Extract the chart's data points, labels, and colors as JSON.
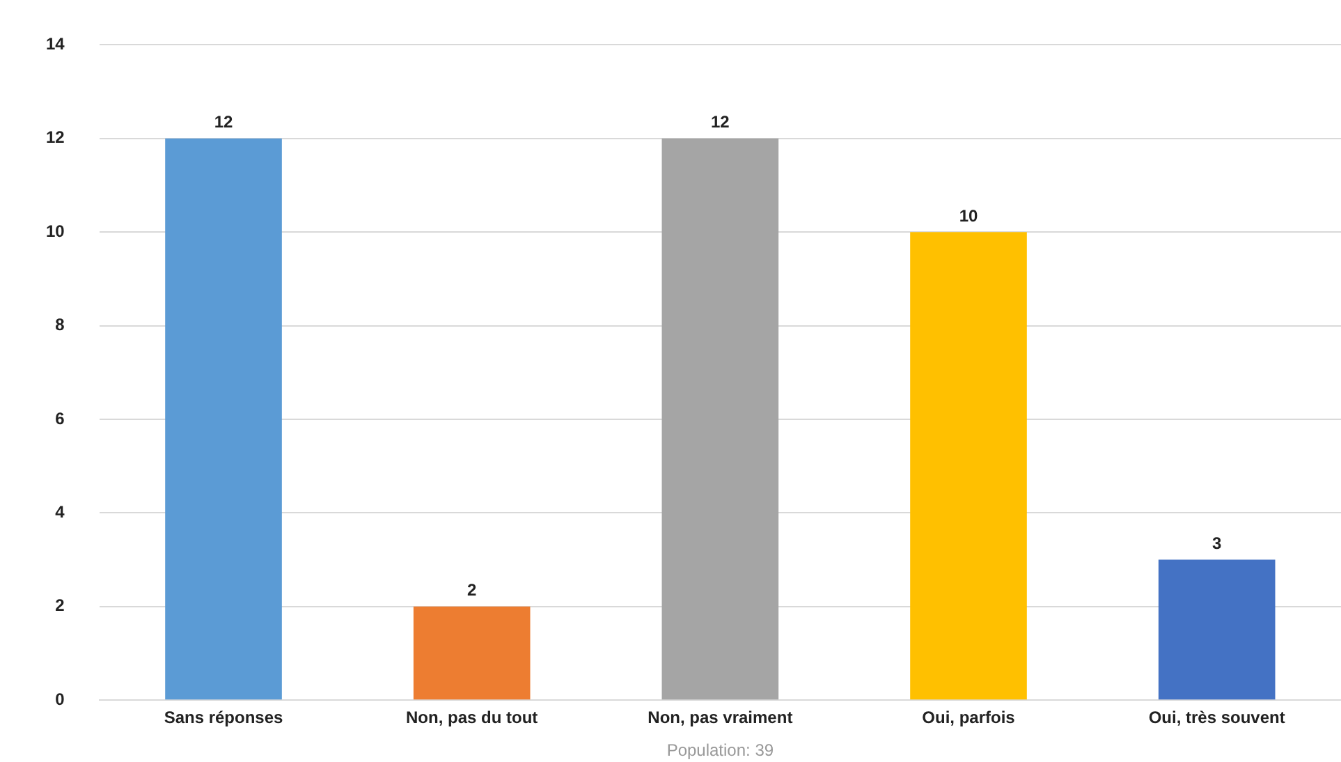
{
  "chart_data": {
    "type": "bar",
    "categories": [
      "Sans réponses",
      "Non, pas du tout",
      "Non, pas vraiment",
      "Oui, parfois",
      "Oui, très souvent"
    ],
    "values": [
      12,
      2,
      12,
      10,
      3
    ],
    "colors": [
      "#5b9bd5",
      "#ed7d31",
      "#a5a5a5",
      "#ffc000",
      "#4472c4"
    ],
    "ylim": [
      0,
      14
    ],
    "yticks": [
      0,
      2,
      4,
      6,
      8,
      10,
      12,
      14
    ],
    "grid": "y",
    "data_labels": true,
    "legend": false,
    "annotations": [
      "Population: 39"
    ]
  }
}
